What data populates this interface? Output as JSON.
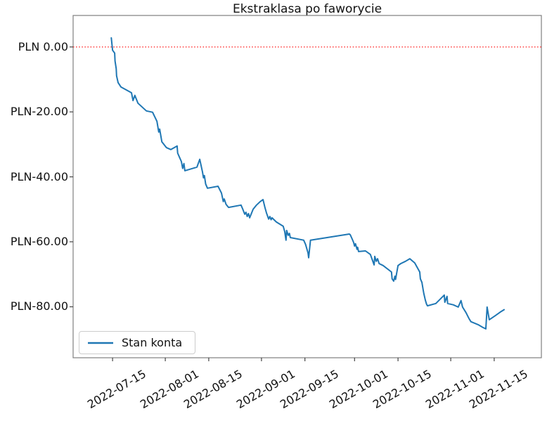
{
  "figure": {
    "title": "Ekstraklasa po faworycie",
    "background": "#ffffff"
  },
  "legend": {
    "label": "Stan konta"
  },
  "chart_data": {
    "type": "line",
    "title": "Ekstraklasa po faworycie",
    "xlabel": "",
    "ylabel": "",
    "grid": false,
    "legend_position": "lower left",
    "x_axis": {
      "kind": "date",
      "epoch": "2022-07-15",
      "tick_labels": [
        "2022-07-15",
        "2022-08-01",
        "2022-08-15",
        "2022-09-01",
        "2022-09-15",
        "2022-10-01",
        "2022-10-15",
        "2022-11-01",
        "2022-11-15"
      ],
      "tick_day_offsets": [
        0,
        17,
        31,
        48,
        62,
        78,
        92,
        109,
        123
      ],
      "range_days": [
        -12.7,
        138.2
      ]
    },
    "y_axis": {
      "currency": "PLN",
      "tick_labels": [
        "PLN 0.00",
        "PLN-20.00",
        "PLN-40.00",
        "PLN-60.00",
        "PLN-80.00"
      ],
      "tick_values": [
        0,
        -20,
        -40,
        -60,
        -80
      ],
      "range": [
        -95.7,
        9.7
      ]
    },
    "zero_line": {
      "value": 0,
      "color": "#ff2a2a",
      "style": "dotted"
    },
    "series": [
      {
        "name": "Stan konta",
        "color": "#1f77b4",
        "points_day_value": [
          [
            -0.4,
            2.8
          ],
          [
            0,
            -1
          ],
          [
            0.7,
            -1.9
          ],
          [
            0.8,
            -4.3
          ],
          [
            1.2,
            -6.7
          ],
          [
            1.3,
            -8.9
          ],
          [
            1.8,
            -11
          ],
          [
            2.7,
            -12.3
          ],
          [
            6.1,
            -14.1
          ],
          [
            6.6,
            -16.5
          ],
          [
            7.2,
            -14.9
          ],
          [
            8.2,
            -17.3
          ],
          [
            10.9,
            -19.7
          ],
          [
            12.9,
            -20.1
          ],
          [
            14.3,
            -22.9
          ],
          [
            14.9,
            -26.2
          ],
          [
            15.2,
            -25.3
          ],
          [
            15.9,
            -29.2
          ],
          [
            17.4,
            -31
          ],
          [
            18.8,
            -31.6
          ],
          [
            20.8,
            -30.5
          ],
          [
            21,
            -32.7
          ],
          [
            22.2,
            -35.3
          ],
          [
            22.6,
            -37.4
          ],
          [
            23,
            -35.9
          ],
          [
            23.3,
            -38.1
          ],
          [
            27.2,
            -37
          ],
          [
            28.1,
            -34.6
          ],
          [
            29,
            -38.5
          ],
          [
            29.3,
            -40.3
          ],
          [
            29.6,
            -39.6
          ],
          [
            30,
            -42.2
          ],
          [
            30.6,
            -43.5
          ],
          [
            34,
            -42.9
          ],
          [
            35.1,
            -45
          ],
          [
            35.7,
            -47.6
          ],
          [
            36,
            -46.8
          ],
          [
            36.6,
            -48.5
          ],
          [
            37.4,
            -49.4
          ],
          [
            41.4,
            -48.7
          ],
          [
            41.9,
            -49.8
          ],
          [
            42.6,
            -51.5
          ],
          [
            43,
            -50.9
          ],
          [
            43.4,
            -52.2
          ],
          [
            43.8,
            -51.3
          ],
          [
            44.2,
            -52.6
          ],
          [
            45.3,
            -50
          ],
          [
            46.4,
            -48.7
          ],
          [
            47.6,
            -47.6
          ],
          [
            48.5,
            -47
          ],
          [
            49.1,
            -49.4
          ],
          [
            49.6,
            -51.1
          ],
          [
            50.3,
            -53
          ],
          [
            50.7,
            -52.2
          ],
          [
            51.1,
            -53.2
          ],
          [
            51.4,
            -52.6
          ],
          [
            52.8,
            -53.9
          ],
          [
            55,
            -55.2
          ],
          [
            55.5,
            -56.9
          ],
          [
            55.9,
            -59.5
          ],
          [
            56.1,
            -56.5
          ],
          [
            56.6,
            -58
          ],
          [
            57,
            -57.4
          ],
          [
            57.3,
            -58.7
          ],
          [
            61.6,
            -59.5
          ],
          [
            62.2,
            -60.8
          ],
          [
            63,
            -63.4
          ],
          [
            63.2,
            -64.9
          ],
          [
            63.8,
            -59.5
          ],
          [
            76.3,
            -57.6
          ],
          [
            76.6,
            -57.8
          ],
          [
            77.2,
            -59.1
          ],
          [
            77.7,
            -60.2
          ],
          [
            78,
            -61.3
          ],
          [
            78.3,
            -60.6
          ],
          [
            78.8,
            -62.3
          ],
          [
            79,
            -61.7
          ],
          [
            79.3,
            -63
          ],
          [
            81.5,
            -62.8
          ],
          [
            83.1,
            -63.9
          ],
          [
            84.3,
            -67.1
          ],
          [
            84.5,
            -64.5
          ],
          [
            85,
            -66
          ],
          [
            85.4,
            -65.2
          ],
          [
            85.9,
            -66.7
          ],
          [
            87.2,
            -67.3
          ],
          [
            89.9,
            -69.3
          ],
          [
            90.1,
            -71.4
          ],
          [
            90.6,
            -72.1
          ],
          [
            91,
            -70.6
          ],
          [
            91.2,
            -71.6
          ],
          [
            92,
            -67.3
          ],
          [
            92.9,
            -66.7
          ],
          [
            94.4,
            -66
          ],
          [
            95.8,
            -65.2
          ],
          [
            97.4,
            -66.5
          ],
          [
            99,
            -69.3
          ],
          [
            99.2,
            -71.4
          ],
          [
            99.7,
            -72.5
          ],
          [
            100.1,
            -74.7
          ],
          [
            100.3,
            -75.8
          ],
          [
            100.8,
            -77.9
          ],
          [
            101.2,
            -79.2
          ],
          [
            101.5,
            -79.7
          ],
          [
            104.2,
            -79
          ],
          [
            106.9,
            -76.4
          ],
          [
            107.1,
            -78.6
          ],
          [
            107.8,
            -76.8
          ],
          [
            108,
            -79
          ],
          [
            109.8,
            -79.4
          ],
          [
            111.4,
            -80.1
          ],
          [
            112.3,
            -78.1
          ],
          [
            112.8,
            -80.1
          ],
          [
            113.9,
            -81.8
          ],
          [
            114.8,
            -83.5
          ],
          [
            115.5,
            -84.6
          ],
          [
            117.8,
            -85.5
          ],
          [
            119.4,
            -86.4
          ],
          [
            120.3,
            -86.8
          ],
          [
            120.7,
            -80.1
          ],
          [
            121.4,
            -84
          ],
          [
            123.4,
            -82.7
          ],
          [
            125,
            -81.6
          ],
          [
            126.2,
            -80.9
          ]
        ]
      }
    ]
  }
}
